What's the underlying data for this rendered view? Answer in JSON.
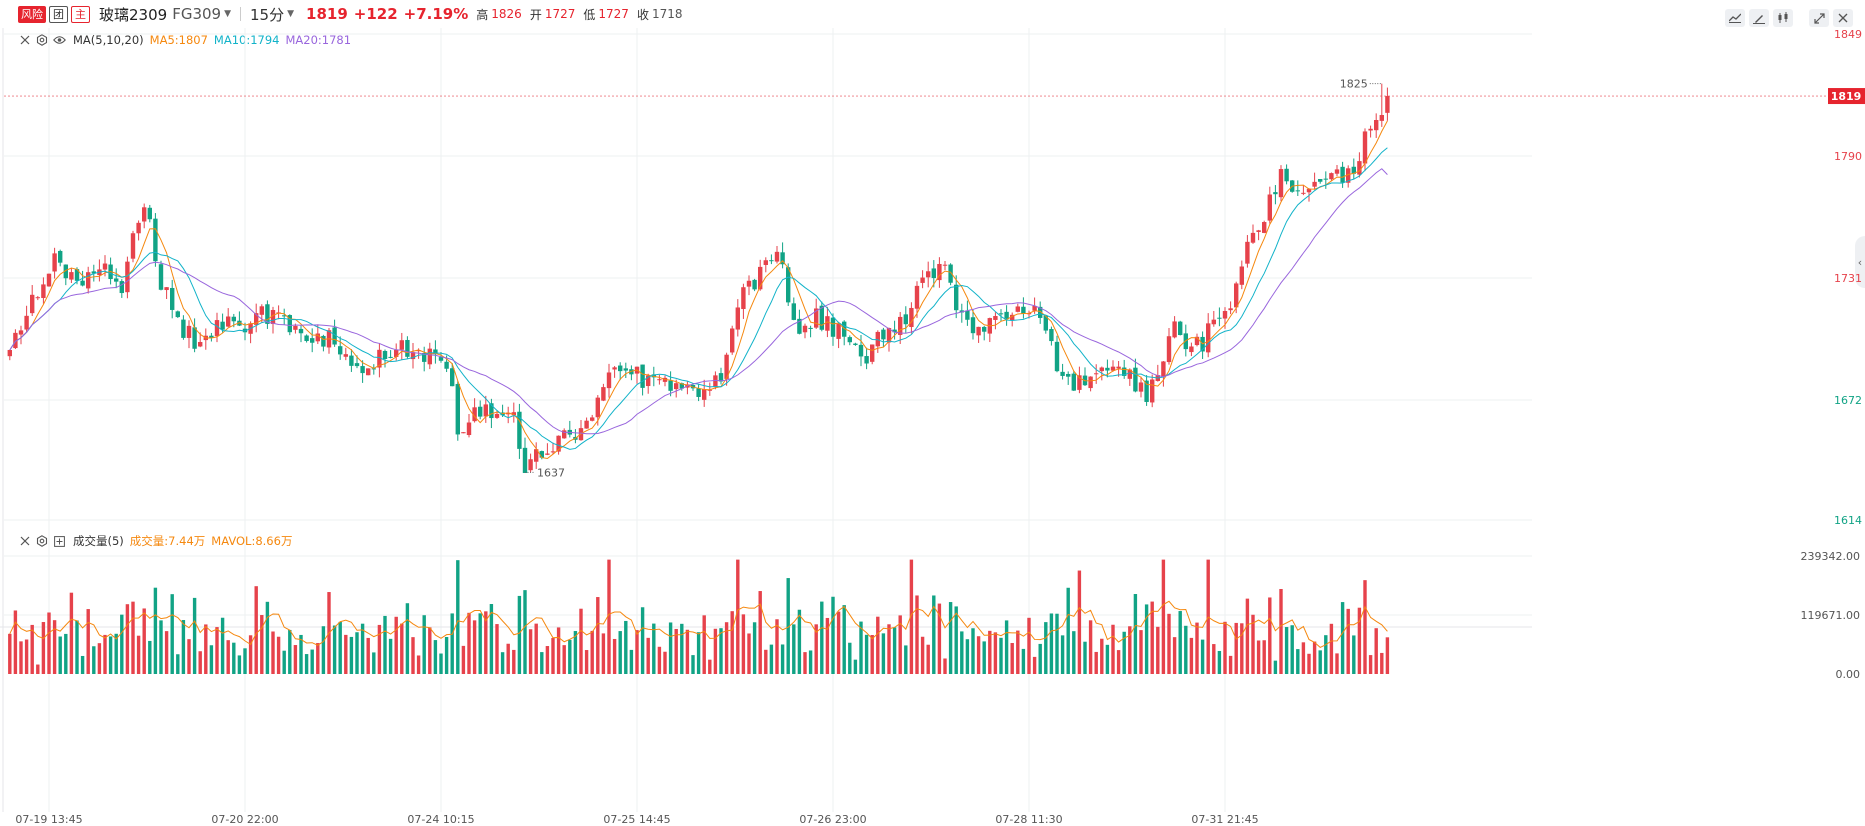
{
  "header": {
    "risk_tag": "风险",
    "group_tag": "团",
    "main_tag": "主",
    "symbol": "玻璃2309",
    "code": "FG309",
    "period": "15分",
    "last_price": "1819",
    "change": "+122",
    "change_pct": "+7.19%",
    "high_label": "高",
    "high_value": "1826",
    "open_label": "开",
    "open_value": "1727",
    "low_label": "低",
    "low_value": "1727",
    "close_label": "收",
    "close_value": "1718"
  },
  "toolbar": {
    "icons": [
      "line-chart-icon",
      "draw-icon",
      "candle-type-icon",
      "fullscreen-icon",
      "close-icon"
    ]
  },
  "price_legend": {
    "name": "MA(5,10,20)",
    "ma5": "MA5:1807",
    "ma10": "MA10:1794",
    "ma20": "MA20:1781"
  },
  "volume_legend": {
    "name": "成交量(5)",
    "vol": "成交量:7.44万",
    "mavol": "MAVOL:8.66万"
  },
  "colors": {
    "up": "#e6424b",
    "down": "#11a385",
    "ma5": "#f5880f",
    "ma10": "#12b3c9",
    "ma20": "#9966dd",
    "grid": "#eef0f2"
  },
  "chart_data": {
    "type": "candlestick",
    "price_axis": {
      "ticks": [
        "1849",
        "1790",
        "1731",
        "1672",
        "1614"
      ],
      "tick_values": [
        1849,
        1790,
        1731,
        1672,
        1614
      ],
      "range": [
        1614,
        1849
      ],
      "current_price_label": "1819"
    },
    "volume_axis": {
      "ticks": [
        "239342.00",
        "119671.00",
        "0.00"
      ],
      "tick_values": [
        239342,
        119671,
        0
      ],
      "range": [
        0,
        239342
      ]
    },
    "x_axis_labels": [
      "07-19 13:45",
      "07-20 22:00",
      "07-24 10:15",
      "07-25 14:45",
      "07-26 23:00",
      "07-28 11:30",
      "07-31 21:45"
    ],
    "x_label_bar_index": [
      7,
      42,
      77,
      112,
      147,
      182,
      217
    ],
    "annotations": {
      "high": "1825",
      "low": "1637",
      "high_index": 245,
      "low_index": 92
    },
    "waypoints": [
      [
        0,
        1701
      ],
      [
        5,
        1725
      ],
      [
        8,
        1738
      ],
      [
        12,
        1730
      ],
      [
        15,
        1733
      ],
      [
        18,
        1734
      ],
      [
        20,
        1728
      ],
      [
        23,
        1761
      ],
      [
        25,
        1760
      ],
      [
        27,
        1728
      ],
      [
        31,
        1705
      ],
      [
        34,
        1700
      ],
      [
        37,
        1708
      ],
      [
        40,
        1710
      ],
      [
        42,
        1705
      ],
      [
        44,
        1712
      ],
      [
        47,
        1714
      ],
      [
        50,
        1705
      ],
      [
        55,
        1700
      ],
      [
        58,
        1702
      ],
      [
        63,
        1684
      ],
      [
        67,
        1696
      ],
      [
        70,
        1698
      ],
      [
        73,
        1696
      ],
      [
        78,
        1692
      ],
      [
        80,
        1660
      ],
      [
        86,
        1668
      ],
      [
        90,
        1662
      ],
      [
        92,
        1640
      ],
      [
        94,
        1645
      ],
      [
        97,
        1650
      ],
      [
        100,
        1655
      ],
      [
        103,
        1662
      ],
      [
        105,
        1673
      ],
      [
        108,
        1686
      ],
      [
        111,
        1684
      ],
      [
        114,
        1682
      ],
      [
        118,
        1680
      ],
      [
        120,
        1673
      ],
      [
        124,
        1680
      ],
      [
        127,
        1682
      ],
      [
        129,
        1707
      ],
      [
        131,
        1722
      ],
      [
        134,
        1732
      ],
      [
        136,
        1742
      ],
      [
        137,
        1742
      ],
      [
        139,
        1724
      ],
      [
        141,
        1706
      ],
      [
        144,
        1712
      ],
      [
        148,
        1706
      ],
      [
        150,
        1702
      ],
      [
        153,
        1693
      ],
      [
        156,
        1706
      ],
      [
        160,
        1710
      ],
      [
        163,
        1729
      ],
      [
        165,
        1730
      ],
      [
        167,
        1740
      ],
      [
        169,
        1718
      ],
      [
        172,
        1705
      ],
      [
        175,
        1712
      ],
      [
        177,
        1715
      ],
      [
        180,
        1718
      ],
      [
        183,
        1714
      ],
      [
        185,
        1705
      ],
      [
        188,
        1680
      ],
      [
        192,
        1680
      ],
      [
        196,
        1684
      ],
      [
        200,
        1683
      ],
      [
        203,
        1673
      ],
      [
        206,
        1690
      ],
      [
        208,
        1715
      ],
      [
        210,
        1700
      ],
      [
        213,
        1700
      ],
      [
        216,
        1715
      ],
      [
        218,
        1720
      ],
      [
        221,
        1745
      ],
      [
        223,
        1757
      ],
      [
        225,
        1768
      ],
      [
        227,
        1782
      ],
      [
        229,
        1775
      ],
      [
        232,
        1778
      ],
      [
        235,
        1780
      ],
      [
        239,
        1782
      ],
      [
        241,
        1790
      ],
      [
        243,
        1805
      ],
      [
        245,
        1813
      ],
      [
        246,
        1819
      ]
    ],
    "ma_periods": [
      5,
      10,
      20
    ],
    "series": [
      {
        "name": "MA5",
        "value": 1807
      },
      {
        "name": "MA10",
        "value": 1794
      },
      {
        "name": "MA20",
        "value": 1781
      }
    ],
    "volume_last": 74400,
    "mavol_last": 86600
  }
}
